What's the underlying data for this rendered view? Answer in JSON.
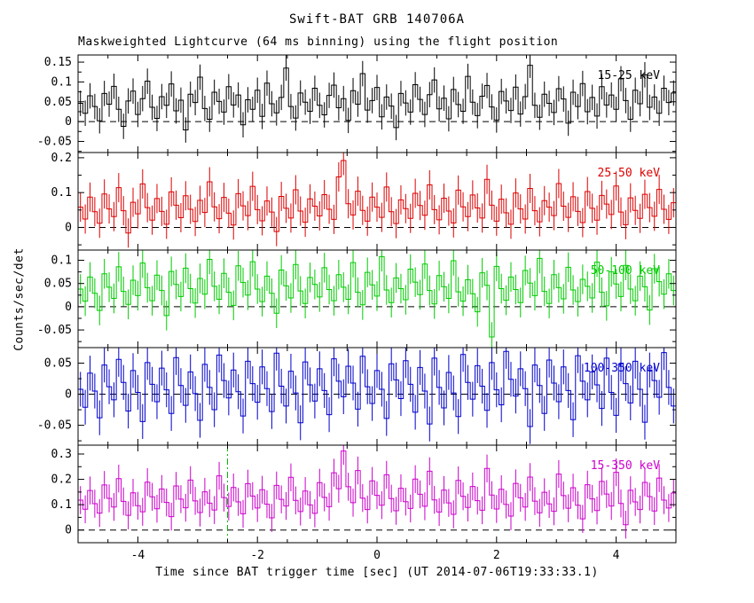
{
  "chart_data": {
    "type": "line",
    "title": "Swift-BAT GRB 140706A",
    "subtitle": "Maskweighted Lightcurve (64 ms binning) using the flight position",
    "xlabel": "Time since BAT trigger time [sec] (UT 2014-07-06T19:33:33.1)",
    "ylabel": "Counts/sec/det",
    "xlim": [
      -5,
      5
    ],
    "xticks": [
      -4,
      -2,
      0,
      2,
      4
    ],
    "x_start": -4.96,
    "x_step": 0.08,
    "grid": false,
    "zero_line": {
      "style": "dashed",
      "color": "#000000"
    },
    "panels": [
      {
        "label": "15-25 keV",
        "color": "#000000",
        "ylim": [
          -0.078,
          0.168
        ],
        "yticks": [
          -0.05,
          0,
          0.05,
          0.1,
          0.15
        ],
        "err": 0.032,
        "values": [
          0.046,
          0.021,
          0.065,
          0.038,
          0.002,
          0.071,
          0.044,
          0.089,
          0.031,
          -0.012,
          0.052,
          0.077,
          0.018,
          0.058,
          0.102,
          0.036,
          0.008,
          0.063,
          0.041,
          0.095,
          0.027,
          0.054,
          -0.021,
          0.069,
          0.048,
          0.112,
          0.033,
          0.006,
          0.074,
          0.051,
          0.024,
          0.088,
          0.042,
          0.067,
          -0.008,
          0.055,
          0.031,
          0.079,
          0.013,
          0.097,
          0.045,
          0.022,
          0.061,
          0.135,
          0.038,
          0.009,
          0.072,
          0.049,
          0.026,
          0.084,
          0.041,
          0.017,
          0.066,
          0.092,
          0.035,
          0.058,
          0.003,
          0.078,
          0.044,
          0.121,
          0.029,
          0.053,
          0.086,
          0.012,
          0.062,
          0.039,
          -0.015,
          0.071,
          0.047,
          0.024,
          0.093,
          0.056,
          0.018,
          0.068,
          0.105,
          0.032,
          0.059,
          0.007,
          0.081,
          0.043,
          0.026,
          0.114,
          0.049,
          0.015,
          0.064,
          0.091,
          0.037,
          0.004,
          0.076,
          0.052,
          0.028,
          0.087,
          0.019,
          0.063,
          0.142,
          0.041,
          0.011,
          0.069,
          0.046,
          0.023,
          0.083,
          0.057,
          -0.004,
          0.074,
          0.038,
          0.096,
          0.025,
          0.061,
          0.014,
          0.088,
          0.042,
          0.067,
          0.031,
          0.108,
          0.053,
          0.006,
          0.079,
          0.045,
          0.118,
          0.036,
          0.062,
          0.021,
          0.084,
          0.048,
          0.072
        ]
      },
      {
        "label": "25-50 keV",
        "color": "#dd0000",
        "ylim": [
          -0.065,
          0.215
        ],
        "yticks": [
          0,
          0.1,
          0.2
        ],
        "err": 0.042,
        "values": [
          0.058,
          0.024,
          0.087,
          0.045,
          0.012,
          0.096,
          0.053,
          0.031,
          0.114,
          0.048,
          -0.016,
          0.072,
          0.039,
          0.125,
          0.057,
          0.021,
          0.083,
          0.046,
          0.009,
          0.102,
          0.064,
          0.028,
          0.091,
          0.052,
          0.017,
          0.078,
          0.043,
          0.131,
          0.059,
          0.025,
          0.086,
          0.041,
          0.007,
          0.097,
          0.062,
          0.034,
          0.118,
          0.051,
          0.019,
          0.076,
          0.044,
          -0.012,
          0.089,
          0.055,
          0.027,
          0.108,
          0.047,
          0.015,
          0.082,
          0.061,
          0.033,
          0.094,
          0.052,
          0.023,
          0.145,
          0.192,
          0.068,
          0.036,
          0.104,
          0.049,
          0.018,
          0.087,
          0.058,
          0.029,
          0.116,
          0.045,
          0.011,
          0.079,
          0.054,
          0.026,
          0.098,
          0.063,
          0.035,
          0.122,
          0.051,
          0.022,
          0.084,
          0.047,
          0.013,
          0.107,
          0.059,
          0.031,
          0.093,
          0.056,
          0.027,
          0.138,
          0.064,
          0.018,
          0.081,
          0.042,
          0.009,
          0.099,
          0.053,
          0.024,
          0.112,
          0.048,
          0.016,
          0.077,
          0.058,
          0.034,
          0.126,
          0.061,
          0.029,
          0.088,
          0.046,
          0.014,
          0.103,
          0.055,
          0.021,
          0.092,
          0.067,
          0.037,
          0.119,
          0.044,
          0.008,
          0.085,
          0.049,
          0.026,
          0.095,
          0.057,
          0.032,
          0.109,
          0.052,
          0.023,
          0.071
        ]
      },
      {
        "label": "50-100 keV",
        "color": "#00cc00",
        "ylim": [
          -0.088,
          0.122
        ],
        "yticks": [
          -0.05,
          0,
          0.05,
          0.1
        ],
        "err": 0.032,
        "values": [
          0.038,
          0.012,
          0.064,
          0.029,
          -0.008,
          0.071,
          0.042,
          0.018,
          0.086,
          0.033,
          0.005,
          0.057,
          0.024,
          0.094,
          0.041,
          0.013,
          0.068,
          0.035,
          -0.019,
          0.076,
          0.048,
          0.022,
          0.083,
          0.039,
          0.008,
          0.061,
          0.027,
          0.102,
          0.044,
          0.016,
          0.072,
          0.031,
          0.003,
          0.088,
          0.052,
          0.025,
          0.097,
          0.038,
          0.011,
          0.066,
          0.029,
          -0.014,
          0.079,
          0.045,
          0.019,
          0.091,
          0.034,
          0.007,
          0.063,
          0.048,
          0.021,
          0.084,
          0.037,
          0.013,
          0.069,
          0.042,
          0.016,
          0.095,
          0.031,
          0.004,
          0.074,
          0.047,
          0.023,
          0.108,
          0.036,
          0.009,
          0.062,
          0.039,
          0.015,
          0.081,
          0.053,
          0.026,
          0.092,
          0.035,
          0.006,
          0.067,
          0.043,
          0.018,
          0.099,
          0.032,
          0.012,
          0.058,
          0.028,
          -0.011,
          0.073,
          0.046,
          -0.065,
          0.087,
          0.039,
          0.014,
          0.064,
          0.037,
          0.009,
          0.078,
          0.051,
          0.024,
          0.104,
          0.033,
          0.007,
          0.069,
          0.041,
          0.017,
          0.085,
          0.036,
          0.011,
          0.059,
          0.044,
          0.019,
          0.096,
          0.031,
          0.002,
          0.075,
          0.049,
          0.022,
          0.089,
          0.038,
          0.013,
          0.066,
          0.043,
          -0.007,
          0.082,
          0.054,
          0.027,
          0.071,
          0.035
        ]
      },
      {
        "label": "100-350 keV",
        "color": "#0000cc",
        "ylim": [
          -0.082,
          0.075
        ],
        "yticks": [
          -0.05,
          0,
          0.05
        ],
        "err": 0.028,
        "values": [
          0.008,
          -0.021,
          0.034,
          0.005,
          -0.038,
          0.047,
          0.012,
          -0.009,
          0.056,
          0.019,
          -0.027,
          0.038,
          0.003,
          -0.044,
          0.051,
          0.016,
          -0.012,
          0.042,
          0.007,
          -0.031,
          0.059,
          0.014,
          -0.018,
          0.036,
          0.001,
          -0.042,
          0.048,
          0.011,
          -0.025,
          0.063,
          0.022,
          -0.006,
          0.039,
          0.004,
          -0.035,
          0.053,
          0.017,
          -0.013,
          0.044,
          0.009,
          -0.028,
          0.066,
          0.013,
          -0.019,
          0.037,
          0.002,
          -0.046,
          0.052,
          0.015,
          -0.011,
          0.041,
          0.006,
          -0.033,
          0.057,
          0.021,
          -0.004,
          0.045,
          0.018,
          -0.024,
          0.061,
          0.012,
          -0.015,
          0.038,
          0.008,
          -0.039,
          0.049,
          0.023,
          -0.007,
          0.054,
          0.016,
          -0.029,
          0.043,
          0.005,
          -0.048,
          0.058,
          0.011,
          -0.022,
          0.035,
          0.002,
          -0.036,
          0.064,
          0.019,
          -0.008,
          0.046,
          0.013,
          -0.026,
          0.051,
          0.007,
          -0.017,
          0.069,
          0.024,
          -0.003,
          0.041,
          0.009,
          -0.052,
          0.047,
          0.014,
          -0.031,
          0.055,
          0.018,
          -0.012,
          0.044,
          0.006,
          -0.041,
          0.062,
          0.021,
          -0.009,
          0.036,
          0.015,
          -0.023,
          0.058,
          0.003,
          -0.034,
          0.049,
          0.017,
          -0.014,
          0.053,
          0.008,
          -0.045,
          0.039,
          0.022,
          -0.005,
          0.067,
          0.011,
          -0.019
        ]
      },
      {
        "label": "15-350 keV",
        "color": "#cc00cc",
        "ylim": [
          -0.05,
          0.335
        ],
        "yticks": [
          0,
          0.1,
          0.2,
          0.3
        ],
        "err": 0.055,
        "vline_x": -2.5,
        "vline_color": "#00bb00",
        "values": [
          0.118,
          0.082,
          0.156,
          0.104,
          0.067,
          0.178,
          0.125,
          0.091,
          0.203,
          0.113,
          0.058,
          0.147,
          0.096,
          0.072,
          0.189,
          0.131,
          0.084,
          0.162,
          0.109,
          0.053,
          0.174,
          0.122,
          0.088,
          0.197,
          0.115,
          0.069,
          0.151,
          0.106,
          0.079,
          0.214,
          0.128,
          0.093,
          0.168,
          0.111,
          0.064,
          0.183,
          0.134,
          0.087,
          0.159,
          0.102,
          0.048,
          0.176,
          0.121,
          0.095,
          0.208,
          0.117,
          0.073,
          0.154,
          0.099,
          0.066,
          0.187,
          0.129,
          0.092,
          0.226,
          0.163,
          0.312,
          0.171,
          0.108,
          0.235,
          0.126,
          0.081,
          0.194,
          0.137,
          0.098,
          0.218,
          0.124,
          0.076,
          0.165,
          0.112,
          0.085,
          0.201,
          0.141,
          0.094,
          0.232,
          0.119,
          0.071,
          0.158,
          0.107,
          0.062,
          0.196,
          0.133,
          0.089,
          0.172,
          0.116,
          0.078,
          0.243,
          0.138,
          0.083,
          0.161,
          0.101,
          0.055,
          0.184,
          0.127,
          0.091,
          0.209,
          0.114,
          0.068,
          0.149,
          0.103,
          0.074,
          0.221,
          0.136,
          0.086,
          0.167,
          0.098,
          0.044,
          0.179,
          0.123,
          0.077,
          0.192,
          0.142,
          0.095,
          0.228,
          0.105,
          0.021,
          0.157,
          0.111,
          0.081,
          0.188,
          0.132,
          0.075,
          0.205,
          0.118,
          0.087,
          0.146
        ]
      }
    ]
  }
}
